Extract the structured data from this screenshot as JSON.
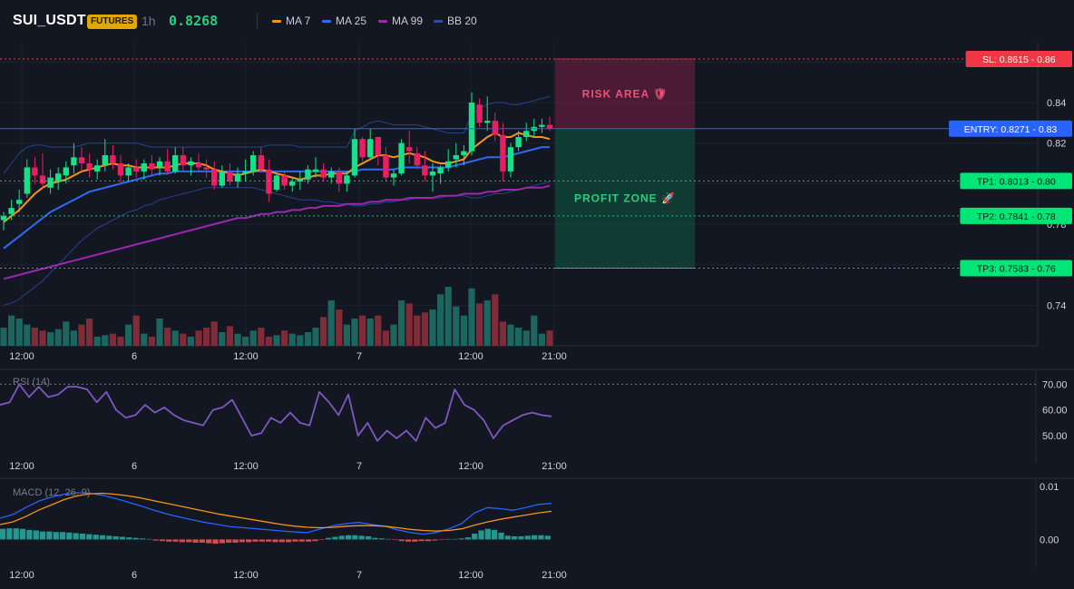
{
  "header": {
    "symbol": "SUI_USDT",
    "badge": "FUTURES",
    "timeframe": "1h",
    "last_price": "0.8268",
    "indicators": [
      {
        "label": "MA 7",
        "color": "#f7931a"
      },
      {
        "label": "MA 25",
        "color": "#2e6bf0"
      },
      {
        "label": "MA 99",
        "color": "#9c27b0"
      },
      {
        "label": "BB 20",
        "color": "#2a4fa8"
      }
    ]
  },
  "colors": {
    "up": "#26a69a",
    "down": "#ef5350",
    "up_bright": "#16e08a",
    "down_bright": "#e91e63",
    "sl": "#f23645",
    "entry": "#2962ff",
    "tp": "#00e676",
    "rsi": "#7e57c2"
  },
  "chart_data": [
    {
      "type": "candlestick",
      "title": "SUI_USDT 1h",
      "x_ticks": [
        "12:00",
        "6",
        "12:00",
        "7",
        "12:00",
        "21:00"
      ],
      "y_ticks": [
        "0.84",
        "0.82",
        "0.78",
        "0.76",
        "0.74"
      ],
      "ylim": [
        0.72,
        0.87
      ],
      "candles": [
        [
          0.782,
          0.786,
          0.777,
          0.784
        ],
        [
          0.785,
          0.792,
          0.782,
          0.788
        ],
        [
          0.79,
          0.797,
          0.786,
          0.792
        ],
        [
          0.795,
          0.812,
          0.793,
          0.808
        ],
        [
          0.808,
          0.813,
          0.8,
          0.804
        ],
        [
          0.804,
          0.815,
          0.798,
          0.8
        ],
        [
          0.798,
          0.807,
          0.795,
          0.803
        ],
        [
          0.801,
          0.808,
          0.797,
          0.805
        ],
        [
          0.804,
          0.811,
          0.8,
          0.808
        ],
        [
          0.809,
          0.82,
          0.805,
          0.813
        ],
        [
          0.813,
          0.818,
          0.806,
          0.81
        ],
        [
          0.81,
          0.815,
          0.803,
          0.807
        ],
        [
          0.806,
          0.812,
          0.802,
          0.809
        ],
        [
          0.809,
          0.822,
          0.806,
          0.814
        ],
        [
          0.814,
          0.819,
          0.807,
          0.81
        ],
        [
          0.81,
          0.814,
          0.8,
          0.804
        ],
        [
          0.804,
          0.81,
          0.801,
          0.808
        ],
        [
          0.808,
          0.812,
          0.803,
          0.806
        ],
        [
          0.806,
          0.812,
          0.802,
          0.81
        ],
        [
          0.81,
          0.814,
          0.804,
          0.807
        ],
        [
          0.808,
          0.813,
          0.804,
          0.811
        ],
        [
          0.811,
          0.817,
          0.805,
          0.806
        ],
        [
          0.806,
          0.818,
          0.805,
          0.814
        ],
        [
          0.814,
          0.818,
          0.806,
          0.809
        ],
        [
          0.809,
          0.813,
          0.804,
          0.811
        ],
        [
          0.81,
          0.815,
          0.806,
          0.808
        ],
        [
          0.808,
          0.812,
          0.803,
          0.807
        ],
        [
          0.807,
          0.811,
          0.797,
          0.799
        ],
        [
          0.799,
          0.809,
          0.798,
          0.806
        ],
        [
          0.806,
          0.81,
          0.799,
          0.801
        ],
        [
          0.801,
          0.808,
          0.798,
          0.805
        ],
        [
          0.805,
          0.812,
          0.801,
          0.806
        ],
        [
          0.806,
          0.816,
          0.804,
          0.814
        ],
        [
          0.814,
          0.818,
          0.806,
          0.807
        ],
        [
          0.807,
          0.812,
          0.791,
          0.795
        ],
        [
          0.797,
          0.805,
          0.796,
          0.804
        ],
        [
          0.804,
          0.806,
          0.797,
          0.799
        ],
        [
          0.799,
          0.803,
          0.796,
          0.801
        ],
        [
          0.801,
          0.806,
          0.797,
          0.802
        ],
        [
          0.802,
          0.809,
          0.8,
          0.807
        ],
        [
          0.806,
          0.813,
          0.803,
          0.807
        ],
        [
          0.807,
          0.81,
          0.801,
          0.803
        ],
        [
          0.803,
          0.808,
          0.8,
          0.806
        ],
        [
          0.806,
          0.808,
          0.796,
          0.8
        ],
        [
          0.8,
          0.806,
          0.796,
          0.804
        ],
        [
          0.804,
          0.827,
          0.803,
          0.822
        ],
        [
          0.822,
          0.823,
          0.811,
          0.813
        ],
        [
          0.813,
          0.827,
          0.812,
          0.822
        ],
        [
          0.823,
          0.823,
          0.809,
          0.814
        ],
        [
          0.814,
          0.818,
          0.801,
          0.803
        ],
        [
          0.803,
          0.807,
          0.799,
          0.805
        ],
        [
          0.805,
          0.822,
          0.804,
          0.82
        ],
        [
          0.818,
          0.826,
          0.81,
          0.816
        ],
        [
          0.815,
          0.818,
          0.807,
          0.809
        ],
        [
          0.809,
          0.816,
          0.801,
          0.804
        ],
        [
          0.804,
          0.81,
          0.796,
          0.806
        ],
        [
          0.805,
          0.809,
          0.8,
          0.808
        ],
        [
          0.808,
          0.817,
          0.806,
          0.811
        ],
        [
          0.812,
          0.82,
          0.808,
          0.814
        ],
        [
          0.814,
          0.819,
          0.809,
          0.816
        ],
        [
          0.816,
          0.845,
          0.814,
          0.84
        ],
        [
          0.839,
          0.842,
          0.828,
          0.83
        ],
        [
          0.83,
          0.843,
          0.826,
          0.831
        ],
        [
          0.831,
          0.835,
          0.821,
          0.824
        ],
        [
          0.824,
          0.83,
          0.801,
          0.806
        ],
        [
          0.806,
          0.82,
          0.803,
          0.818
        ],
        [
          0.818,
          0.826,
          0.816,
          0.823
        ],
        [
          0.823,
          0.83,
          0.821,
          0.826
        ],
        [
          0.826,
          0.832,
          0.823,
          0.828
        ],
        [
          0.828,
          0.832,
          0.825,
          0.829
        ],
        [
          0.829,
          0.833,
          0.826,
          0.827
        ]
      ],
      "volume": [
        0.6,
        1,
        0.9,
        0.7,
        0.6,
        0.5,
        0.45,
        0.55,
        0.8,
        0.5,
        0.7,
        0.9,
        0.3,
        0.35,
        0.4,
        0.3,
        0.7,
        1,
        0.4,
        0.3,
        0.9,
        0.6,
        0.5,
        0.4,
        0.3,
        0.5,
        0.6,
        0.8,
        0.45,
        0.65,
        0.4,
        0.3,
        0.5,
        0.6,
        0.3,
        0.35,
        0.5,
        0.4,
        0.35,
        0.45,
        0.6,
        0.95,
        1.5,
        1.2,
        0.7,
        0.9,
        1.0,
        0.9,
        1.0,
        0.5,
        0.7,
        1.5,
        1.4,
        1.0,
        1.1,
        1.2,
        1.7,
        1.95,
        1.3,
        1.0,
        1.9,
        1.4,
        1.5,
        1.7,
        0.8,
        0.7,
        0.6,
        0.5,
        1.0,
        0.4,
        0.5
      ],
      "ma7": [
        0.781,
        0.784,
        0.787,
        0.791,
        0.795,
        0.798,
        0.8,
        0.801,
        0.802,
        0.804,
        0.806,
        0.807,
        0.808,
        0.809,
        0.81,
        0.809,
        0.809,
        0.808,
        0.808,
        0.808,
        0.808,
        0.808,
        0.809,
        0.81,
        0.81,
        0.81,
        0.809,
        0.807,
        0.806,
        0.805,
        0.804,
        0.805,
        0.806,
        0.807,
        0.806,
        0.805,
        0.804,
        0.803,
        0.802,
        0.803,
        0.804,
        0.804,
        0.805,
        0.805,
        0.805,
        0.808,
        0.81,
        0.812,
        0.814,
        0.814,
        0.813,
        0.814,
        0.815,
        0.814,
        0.813,
        0.811,
        0.81,
        0.81,
        0.811,
        0.812,
        0.817,
        0.82,
        0.823,
        0.825,
        0.823,
        0.823,
        0.825,
        0.824,
        0.823,
        0.823,
        0.822
      ],
      "ma25": [
        0.768,
        0.771,
        0.774,
        0.777,
        0.78,
        0.783,
        0.786,
        0.788,
        0.79,
        0.792,
        0.794,
        0.796,
        0.797,
        0.798,
        0.799,
        0.8,
        0.801,
        0.802,
        0.803,
        0.804,
        0.805,
        0.805,
        0.806,
        0.806,
        0.806,
        0.806,
        0.806,
        0.806,
        0.806,
        0.806,
        0.806,
        0.806,
        0.806,
        0.806,
        0.806,
        0.806,
        0.806,
        0.806,
        0.806,
        0.806,
        0.806,
        0.806,
        0.806,
        0.806,
        0.806,
        0.806,
        0.807,
        0.807,
        0.807,
        0.807,
        0.807,
        0.808,
        0.808,
        0.808,
        0.808,
        0.808,
        0.808,
        0.808,
        0.809,
        0.81,
        0.811,
        0.812,
        0.813,
        0.813,
        0.813,
        0.814,
        0.815,
        0.816,
        0.817,
        0.818,
        0.818
      ],
      "ma99": [
        0.753,
        0.754,
        0.755,
        0.756,
        0.757,
        0.758,
        0.759,
        0.76,
        0.761,
        0.762,
        0.763,
        0.764,
        0.765,
        0.766,
        0.767,
        0.768,
        0.769,
        0.77,
        0.771,
        0.772,
        0.773,
        0.774,
        0.775,
        0.776,
        0.777,
        0.778,
        0.779,
        0.78,
        0.781,
        0.782,
        0.783,
        0.783,
        0.784,
        0.785,
        0.785,
        0.786,
        0.786,
        0.787,
        0.787,
        0.788,
        0.788,
        0.789,
        0.789,
        0.789,
        0.79,
        0.79,
        0.79,
        0.791,
        0.791,
        0.792,
        0.792,
        0.792,
        0.793,
        0.793,
        0.793,
        0.793,
        0.794,
        0.794,
        0.794,
        0.795,
        0.795,
        0.795,
        0.796,
        0.796,
        0.797,
        0.797,
        0.797,
        0.798,
        0.798,
        0.798,
        0.799
      ],
      "bb_upper": [
        0.805,
        0.81,
        0.815,
        0.818,
        0.819,
        0.819,
        0.818,
        0.818,
        0.818,
        0.818,
        0.819,
        0.82,
        0.82,
        0.82,
        0.82,
        0.82,
        0.82,
        0.82,
        0.819,
        0.818,
        0.818,
        0.818,
        0.818,
        0.818,
        0.818,
        0.818,
        0.818,
        0.818,
        0.818,
        0.818,
        0.818,
        0.818,
        0.818,
        0.818,
        0.819,
        0.819,
        0.819,
        0.819,
        0.818,
        0.818,
        0.818,
        0.818,
        0.818,
        0.818,
        0.818,
        0.826,
        0.828,
        0.83,
        0.831,
        0.83,
        0.829,
        0.829,
        0.829,
        0.829,
        0.828,
        0.827,
        0.826,
        0.825,
        0.825,
        0.825,
        0.834,
        0.837,
        0.839,
        0.84,
        0.84,
        0.839,
        0.839,
        0.84,
        0.841,
        0.842,
        0.843
      ],
      "bb_lower": [
        0.74,
        0.741,
        0.743,
        0.746,
        0.749,
        0.752,
        0.756,
        0.76,
        0.764,
        0.768,
        0.772,
        0.775,
        0.778,
        0.78,
        0.782,
        0.784,
        0.786,
        0.787,
        0.789,
        0.79,
        0.792,
        0.793,
        0.794,
        0.795,
        0.796,
        0.797,
        0.798,
        0.798,
        0.798,
        0.798,
        0.798,
        0.798,
        0.798,
        0.797,
        0.796,
        0.795,
        0.794,
        0.793,
        0.792,
        0.792,
        0.792,
        0.791,
        0.791,
        0.79,
        0.79,
        0.789,
        0.789,
        0.79,
        0.79,
        0.791,
        0.791,
        0.792,
        0.792,
        0.793,
        0.793,
        0.793,
        0.793,
        0.794,
        0.794,
        0.794,
        0.793,
        0.793,
        0.794,
        0.795,
        0.795,
        0.796,
        0.797,
        0.798,
        0.799,
        0.8,
        0.801
      ]
    },
    {
      "type": "line",
      "title": "RSI (14)",
      "yticks": [
        "70.00",
        "60.00",
        "50.00"
      ],
      "ylim": [
        43,
        74
      ],
      "x_ticks": [
        "12:00",
        "6",
        "12:00",
        "7",
        "12:00",
        "21:00"
      ],
      "values": [
        62,
        63,
        70,
        65,
        69,
        65,
        66,
        69,
        69,
        68,
        63,
        67,
        60,
        57,
        58,
        62,
        59,
        61,
        58,
        56,
        55,
        54,
        60,
        61,
        64,
        57,
        50,
        51,
        57,
        55,
        59,
        55,
        54,
        67,
        63,
        58,
        66,
        50,
        55,
        48,
        52,
        49,
        52,
        48,
        57,
        53,
        55,
        68,
        62,
        60,
        56,
        49,
        54,
        56,
        58,
        59,
        58,
        57.5
      ]
    },
    {
      "type": "line",
      "title": "MACD (12, 26, 9)",
      "yticks": [
        "0.01",
        "0.00"
      ],
      "ylim": [
        -0.003,
        0.011
      ],
      "x_ticks": [
        "12:00",
        "6",
        "12:00",
        "7",
        "12:00",
        "21:00"
      ],
      "series": [
        {
          "values": [
            0.004,
            0.0047,
            0.006,
            0.0072,
            0.008,
            0.0085,
            0.0088,
            0.0087,
            0.0083,
            0.0077,
            0.007,
            0.0063,
            0.0055,
            0.0048,
            0.0042,
            0.0037,
            0.0032,
            0.0028,
            0.0024,
            0.0022,
            0.002,
            0.0018,
            0.0016,
            0.0014,
            0.0013,
            0.002,
            0.0026,
            0.003,
            0.0032,
            0.0028,
            0.0025,
            0.0018,
            0.0013,
            0.001,
            0.0013,
            0.002,
            0.003,
            0.005,
            0.006,
            0.0058,
            0.0055,
            0.006,
            0.0066,
            0.0068
          ]
        },
        {
          "values": [
            0.0028,
            0.0033,
            0.0043,
            0.0055,
            0.0065,
            0.0075,
            0.0082,
            0.0086,
            0.0087,
            0.0085,
            0.0082,
            0.0078,
            0.0073,
            0.0068,
            0.0063,
            0.0058,
            0.0053,
            0.0048,
            0.0044,
            0.004,
            0.0036,
            0.0032,
            0.0028,
            0.0025,
            0.0023,
            0.0022,
            0.0023,
            0.0025,
            0.0026,
            0.0026,
            0.0025,
            0.0022,
            0.0019,
            0.0017,
            0.0016,
            0.0017,
            0.002,
            0.0027,
            0.0033,
            0.0038,
            0.0042,
            0.0046,
            0.005,
            0.0053
          ]
        }
      ],
      "histogram": [
        0.002,
        0.0021,
        0.0021,
        0.002,
        0.0018,
        0.0017,
        0.0015,
        0.0015,
        0.0014,
        0.0014,
        0.0013,
        0.0012,
        0.0011,
        0.001,
        0.0009,
        0.0008,
        0.0007,
        0.0006,
        0.0005,
        0.0004,
        0.0003,
        0.0002,
        0.0001,
        -0.0002,
        -0.0003,
        -0.0004,
        -0.0004,
        -0.0005,
        -0.0005,
        -0.0006,
        -0.0006,
        -0.0007,
        -0.0008,
        -0.0007,
        -0.0006,
        -0.0006,
        -0.0005,
        -0.0005,
        -0.0004,
        -0.0004,
        -0.0004,
        -0.0005,
        -0.0005,
        -0.0005,
        -0.0004,
        -0.0004,
        -0.0004,
        -0.0003,
        -0.0001,
        0.0003,
        0.0005,
        0.0007,
        0.0008,
        0.0008,
        0.0007,
        0.0006,
        0.0003,
        0.0002,
        0.0001,
        -0.0001,
        -0.0003,
        -0.0004,
        -0.0004,
        -0.0003,
        -0.0003,
        -0.0002,
        -0.0001,
        0.0001,
        0.0001,
        0.0002,
        0.0004,
        0.0011,
        0.0017,
        0.002,
        0.0018,
        0.0013,
        0.0007,
        0.0006,
        0.0006,
        0.0007,
        0.0008,
        0.0008,
        0.0007
      ]
    }
  ],
  "trade": {
    "sl": {
      "tag": "SL: 0.8615",
      "axis": "0.86",
      "value": 0.8615
    },
    "entry": {
      "tag": "ENTRY: 0.8271",
      "axis": "0.83",
      "value": 0.8271
    },
    "tps": [
      {
        "tag": "TP1: 0.8013",
        "axis": "0.80",
        "value": 0.8013
      },
      {
        "tag": "TP2: 0.7841",
        "axis": "0.78",
        "value": 0.7841
      },
      {
        "tag": "TP3: 0.7583",
        "axis": "0.76",
        "value": 0.7583
      }
    ],
    "risk_label": "RISK AREA 🛡",
    "profit_label": "PROFIT ZONE 🚀"
  }
}
